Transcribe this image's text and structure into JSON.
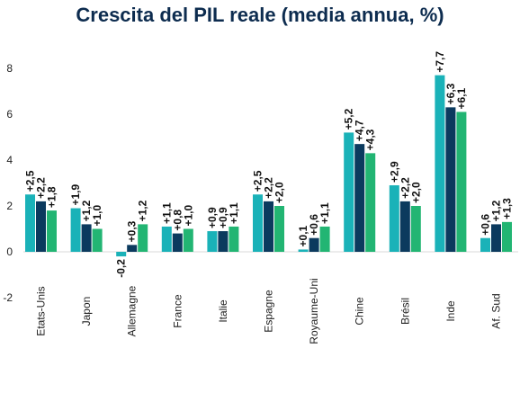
{
  "chart_data": {
    "type": "bar",
    "title": "Crescita del PIL reale (media annua, %)",
    "xlabel": "",
    "ylabel": "",
    "ylim": [
      -2,
      9
    ],
    "yticks": [
      -2,
      0,
      2,
      4,
      6,
      8
    ],
    "grid": false,
    "legend": "none",
    "categories": [
      "Etats-Unis",
      "Japon",
      "Allemagne",
      "France",
      "Italie",
      "Espagne",
      "Royaume-Uni",
      "Chine",
      "Brésil",
      "Inde",
      "Af. Sud"
    ],
    "series": [
      {
        "color": "#1ab2b8",
        "values": [
          2.5,
          1.9,
          -0.2,
          1.1,
          0.9,
          2.5,
          0.1,
          5.2,
          2.9,
          7.7,
          0.6
        ],
        "labels": [
          "+2,5",
          "+1,9",
          "-0,2",
          "+1,1",
          "+0,9",
          "+2,5",
          "+0,1",
          "+5,2",
          "+2,9",
          "+7,7",
          "+0,6"
        ]
      },
      {
        "color": "#0b3a5e",
        "values": [
          2.2,
          1.2,
          0.3,
          0.8,
          0.9,
          2.2,
          0.6,
          4.7,
          2.2,
          6.3,
          1.2
        ],
        "labels": [
          "+2,2",
          "+1,2",
          "+0,3",
          "+0,8",
          "+0,9",
          "+2,2",
          "+0,6",
          "+4,7",
          "+2,2",
          "+6,3",
          "+1,2"
        ]
      },
      {
        "color": "#22b573",
        "values": [
          1.8,
          1.0,
          1.2,
          1.0,
          1.1,
          2.0,
          1.1,
          4.3,
          2.0,
          6.1,
          1.3
        ],
        "labels": [
          "+1,8",
          "+1,0",
          "+1,2",
          "+1,0",
          "+1,1",
          "+2,0",
          "+1,1",
          "+4,3",
          "+2,0",
          "+6,1",
          "+1,3"
        ]
      }
    ]
  }
}
